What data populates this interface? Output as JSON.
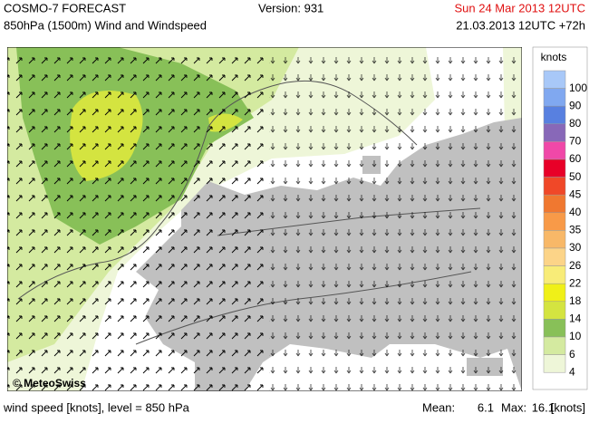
{
  "header": {
    "title": "COSMO-7 FORECAST",
    "subtitle": "850hPa (1500m) Wind and Windspeed",
    "version": "Version: 931",
    "valid_time": "Sun 24 Mar 2013 12UTC",
    "run": "21.03.2013 12UTC +72h"
  },
  "map": {
    "credit": "© MeteoSwiss"
  },
  "legend": {
    "unit": "knots",
    "levels": [
      {
        "label": "100",
        "color": "#a8c8f8"
      },
      {
        "label": "90",
        "color": "#80a8f0"
      },
      {
        "label": "80",
        "color": "#5880e0"
      },
      {
        "label": "70",
        "color": "#8868b8"
      },
      {
        "label": "60",
        "color": "#f048a8"
      },
      {
        "label": "50",
        "color": "#e80028"
      },
      {
        "label": "45",
        "color": "#f04828"
      },
      {
        "label": "40",
        "color": "#f07830"
      },
      {
        "label": "35",
        "color": "#f89a48"
      },
      {
        "label": "30",
        "color": "#f8b868"
      },
      {
        "label": "26",
        "color": "#fcd488"
      },
      {
        "label": "22",
        "color": "#f8ec78"
      },
      {
        "label": "18",
        "color": "#f0f018"
      },
      {
        "label": "14",
        "color": "#d4e440"
      },
      {
        "label": "10",
        "color": "#88c058"
      },
      {
        "label": "6",
        "color": "#d4eaa0"
      },
      {
        "label": "4",
        "color": "#eef6d8"
      }
    ]
  },
  "footer": {
    "description": "wind speed [knots], level = 850 hPa",
    "mean_label": "Mean:",
    "mean": "6.1",
    "max_label": "Max:",
    "max": "16.1",
    "unit": "[knots]"
  }
}
